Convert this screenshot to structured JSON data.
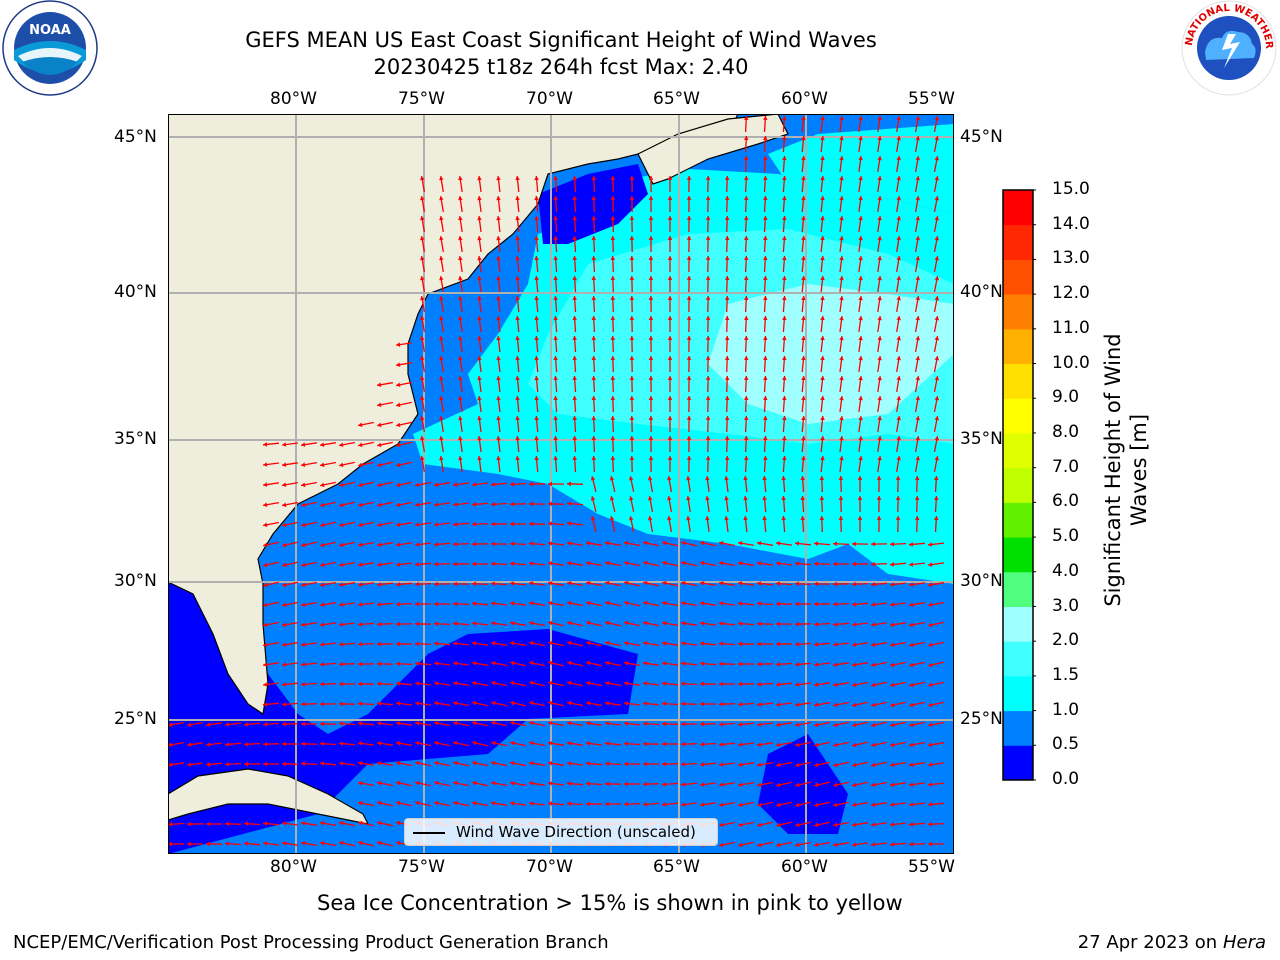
{
  "title": {
    "line1": "GEFS MEAN US East Coast Significant Height of Wind Waves",
    "line2": "20230425 t18z 264h fcst   Max: 2.40"
  },
  "map": {
    "lon_labels": [
      "80°W",
      "75°W",
      "70°W",
      "65°W",
      "60°W",
      "55°W"
    ],
    "lat_labels": [
      "45°N",
      "40°N",
      "35°N",
      "30°N",
      "25°N"
    ],
    "legend_label": "Wind Wave Direction (unscaled)",
    "arrow_color": "#ff0000",
    "land_color": "#efeedc",
    "grid_color": "#b0b0b0"
  },
  "colorbar": {
    "title": "Significant Height of Wind Waves [m]",
    "ticks": [
      "0.0",
      "0.5",
      "1.0",
      "1.5",
      "2.0",
      "3.0",
      "4.0",
      "5.0",
      "6.0",
      "7.0",
      "8.0",
      "9.0",
      "10.0",
      "11.0",
      "12.0",
      "13.0",
      "14.0",
      "15.0"
    ],
    "colors": [
      "#0000ff",
      "#0080ff",
      "#00ffff",
      "#40ffff",
      "#a0ffff",
      "#50ff80",
      "#00e000",
      "#60f000",
      "#c0ff00",
      "#e0ff00",
      "#ffff00",
      "#ffe000",
      "#ffb000",
      "#ff8000",
      "#ff5000",
      "#ff2800",
      "#ff0000"
    ]
  },
  "caption": "Sea Ice Concentration > 15% is shown in pink to yellow",
  "footer": {
    "left": "NCEP/EMC/Verification Post Processing Product Generation Branch",
    "right_date": "27 Apr 2023 on ",
    "right_host": "Hera"
  },
  "logos": {
    "noaa": "NOAA",
    "nws": "NATIONAL WEATHER SERVICE"
  }
}
